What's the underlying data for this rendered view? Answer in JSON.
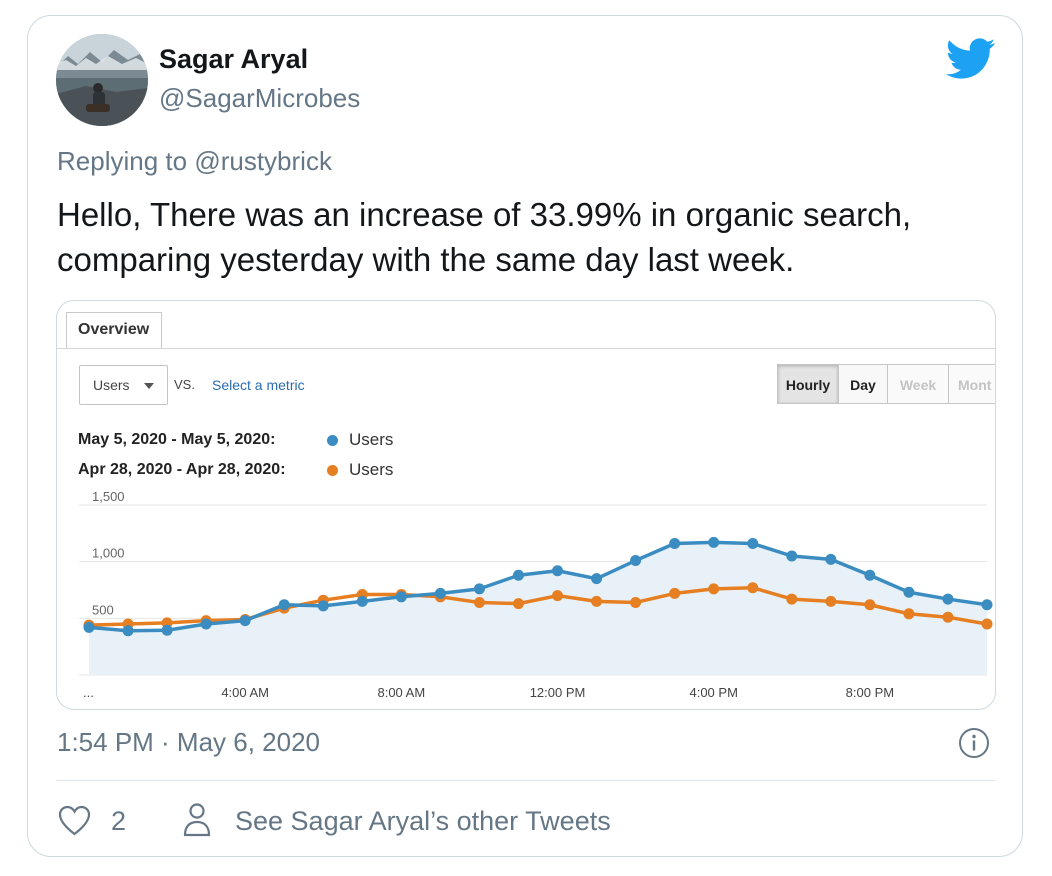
{
  "tweet": {
    "author_name": "Sagar Aryal",
    "author_handle": "@SagarMicrobes",
    "replying_prefix": "Replying to",
    "replying_to": "@rustybrick",
    "text_line1": "Hello, There was an increase of 33.99% in organic search,",
    "text_line2": "comparing yesterday with the same day last week.",
    "timestamp": "1:54 PM · May 6, 2020",
    "like_count": "2",
    "other_tweets_label": "See Sagar Aryal’s other Tweets"
  },
  "icons": {
    "brand": "twitter-bird-icon",
    "info": "info-icon",
    "like": "heart-icon",
    "profile": "person-icon"
  },
  "colors": {
    "twitter_blue": "#1da1f2",
    "series_current": "#3b8cc1",
    "series_previous": "#e67e22",
    "secondary_text": "#657786"
  },
  "analytics": {
    "tab_label": "Overview",
    "metric_dropdown": "Users",
    "vs_label": "VS.",
    "select_metric": "Select a metric",
    "granularity": [
      "Hourly",
      "Day",
      "Week",
      "Mont"
    ],
    "active_granularity": "Hourly",
    "legend": [
      {
        "range": "May 5, 2020 - May 5, 2020:",
        "series": "Users"
      },
      {
        "range": "Apr 28, 2020 - Apr 28, 2020:",
        "series": "Users"
      }
    ]
  },
  "chart_data": {
    "type": "line",
    "ylim": [
      0,
      1500
    ],
    "y_ticks": [
      {
        "value": 1500,
        "label": "1,500"
      },
      {
        "value": 1000,
        "label": "1,000"
      },
      {
        "value": 500,
        "label": "500"
      }
    ],
    "x_ticks": [
      {
        "hour": 0,
        "label": "..."
      },
      {
        "hour": 4,
        "label": "4:00 AM"
      },
      {
        "hour": 8,
        "label": "8:00 AM"
      },
      {
        "hour": 12,
        "label": "12:00 PM"
      },
      {
        "hour": 16,
        "label": "4:00 PM"
      },
      {
        "hour": 20,
        "label": "8:00 PM"
      }
    ],
    "x": [
      0,
      1,
      2,
      3,
      4,
      5,
      6,
      7,
      8,
      9,
      10,
      11,
      12,
      13,
      14,
      15,
      16,
      17,
      18,
      19,
      20,
      21,
      22,
      23
    ],
    "series": [
      {
        "values": [
          420,
          390,
          395,
          450,
          480,
          620,
          610,
          650,
          690,
          720,
          760,
          880,
          920,
          850,
          1010,
          1160,
          1170,
          1160,
          1050,
          1020,
          880,
          730,
          670,
          620
        ]
      },
      {
        "values": [
          440,
          450,
          460,
          480,
          490,
          590,
          660,
          710,
          710,
          690,
          640,
          630,
          700,
          650,
          640,
          720,
          760,
          770,
          670,
          650,
          620,
          540,
          510,
          450
        ]
      }
    ]
  }
}
